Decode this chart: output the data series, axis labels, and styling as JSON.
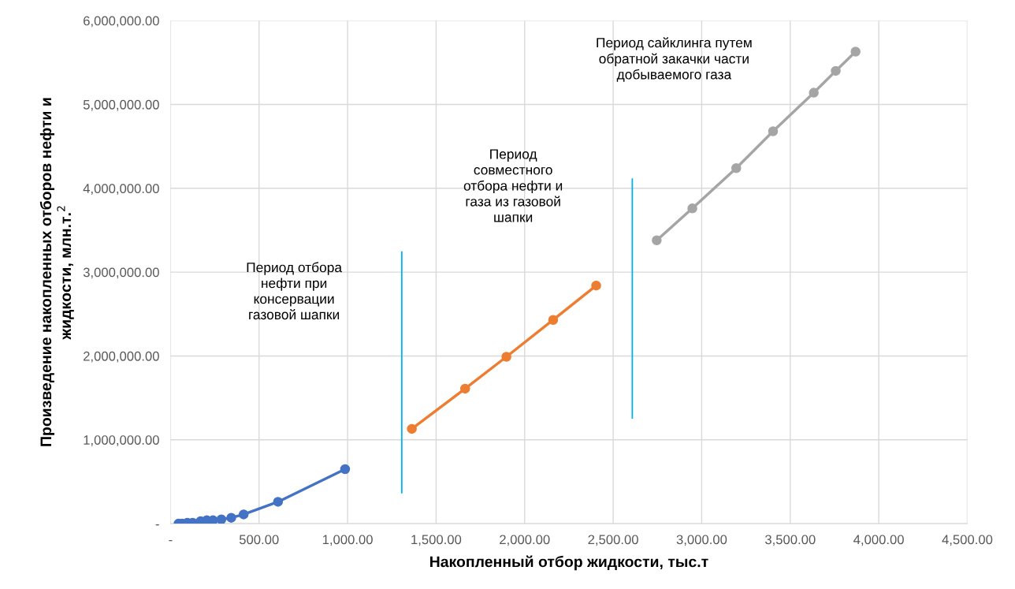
{
  "chart_data": {
    "type": "line",
    "xlabel": "Накопленный отбор жидкости, тыс.т",
    "ylabel": "Произведение накопленных отборов нефти и\nжидкости, млн.т.$^{2}$",
    "xlim": [
      0,
      4500
    ],
    "ylim": [
      0,
      6000000
    ],
    "xticks": [
      {
        "value": 0,
        "label": "-"
      },
      {
        "value": 500,
        "label": "500.00"
      },
      {
        "value": 1000,
        "label": "1,000.00"
      },
      {
        "value": 1500,
        "label": "1,500.00"
      },
      {
        "value": 2000,
        "label": "2,000.00"
      },
      {
        "value": 2500,
        "label": "2,500.00"
      },
      {
        "value": 3000,
        "label": "3,000.00"
      },
      {
        "value": 3500,
        "label": "3,500.00"
      },
      {
        "value": 4000,
        "label": "4,000.00"
      },
      {
        "value": 4500,
        "label": "4,500.00"
      }
    ],
    "yticks": [
      {
        "value": 0,
        "label": "-"
      },
      {
        "value": 1000000,
        "label": "1,000,000.00"
      },
      {
        "value": 2000000,
        "label": "2,000,000.00"
      },
      {
        "value": 3000000,
        "label": "3,000,000.00"
      },
      {
        "value": 4000000,
        "label": "4,000,000.00"
      },
      {
        "value": 5000000,
        "label": "5,000,000.00"
      },
      {
        "value": 6000000,
        "label": "6,000,000.00"
      }
    ],
    "grid": true,
    "marker": "circle",
    "series": [
      {
        "color": "#4472c4",
        "x": [
          45,
          65,
          95,
          125,
          170,
          205,
          240,
          287,
          343,
          413,
          607,
          986
        ],
        "values": [
          0,
          0,
          10000,
          10000,
          30000,
          40000,
          40000,
          50000,
          70000,
          110000,
          260000,
          650000
        ]
      },
      {
        "color": "#ed7d31",
        "x": [
          1363,
          1664,
          1897,
          2161,
          2404
        ],
        "values": [
          1130000,
          1610000,
          1990000,
          2430000,
          2840000
        ]
      },
      {
        "color": "#a5a5a5",
        "x": [
          2746,
          2947,
          3195,
          3403,
          3633,
          3757,
          3869
        ],
        "values": [
          3380000,
          3760000,
          4240000,
          4680000,
          5140000,
          5400000,
          5630000
        ]
      },
      {
        "color": "#00b0f0",
        "marker": "none",
        "x": [
          1306,
          1306
        ],
        "values": [
          370000,
          3240000
        ]
      },
      {
        "color": "#00b0f0",
        "marker": "none",
        "x": [
          2608,
          2608
        ],
        "values": [
          1260000,
          4110000
        ]
      }
    ],
    "annotations": [
      "Период отбора\nнефти при\nконсервации\nгазовой шапки",
      "Период\nсовместного\nотбора нефти и\nгаза из газовой\nшапки",
      "Период сайклинга путем\nобратной закачки части\nдобываемого газа"
    ]
  }
}
